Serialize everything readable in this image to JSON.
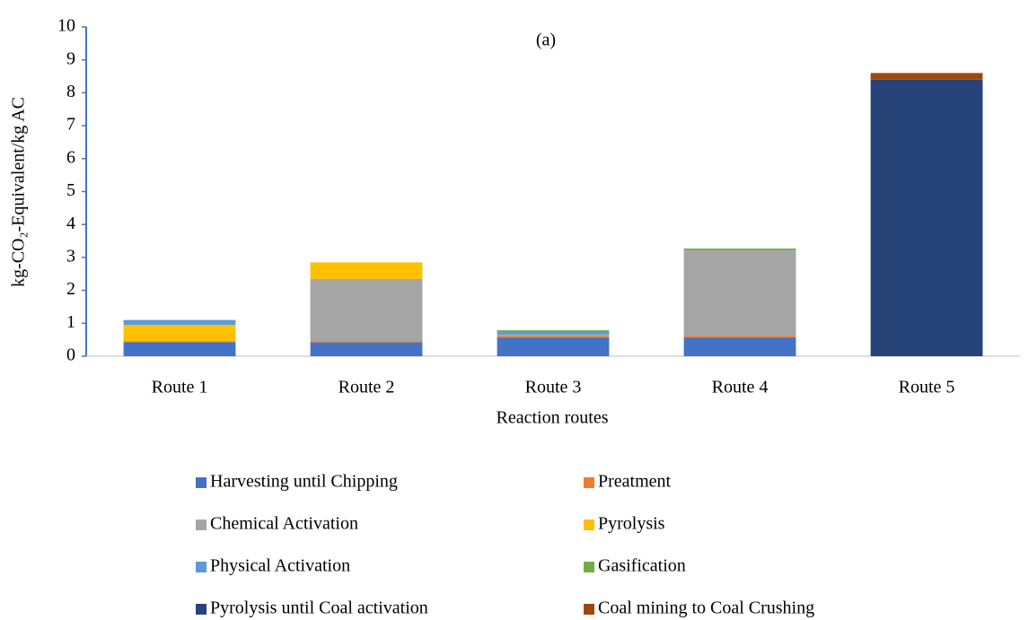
{
  "chart_data": {
    "type": "bar",
    "stacked": true,
    "title": "(a)",
    "ylabel": "kg-CO₂-Equivalent/kg AC",
    "xlabel": "Reaction routes",
    "categories": [
      "Route 1",
      "Route 2",
      "Route 3",
      "Route 4",
      "Route 5"
    ],
    "series": [
      {
        "name": "Harvesting until Chipping",
        "color": "#4472c4",
        "values": [
          0.43,
          0.42,
          0.57,
          0.57,
          0
        ]
      },
      {
        "name": "Preatment",
        "color": "#ed7d31",
        "values": [
          0.02,
          0.03,
          0.05,
          0.05,
          0
        ]
      },
      {
        "name": "Chemical Activation",
        "color": "#a5a5a5",
        "values": [
          0,
          1.9,
          0.04,
          2.6,
          0
        ]
      },
      {
        "name": "Pyrolysis",
        "color": "#ffc000",
        "values": [
          0.5,
          0.5,
          0,
          0,
          0
        ]
      },
      {
        "name": "Physical Activation",
        "color": "#5b9bd5",
        "values": [
          0.15,
          0,
          0.1,
          0,
          0
        ]
      },
      {
        "name": "Gasification",
        "color": "#70ad47",
        "values": [
          0,
          0,
          0.03,
          0.05,
          0
        ]
      },
      {
        "name": "Pyrolysis until Coal activation",
        "color": "#264478",
        "values": [
          0,
          0,
          0,
          0,
          8.4
        ]
      },
      {
        "name": "Coal mining to Coal Crushing",
        "color": "#9e480e",
        "values": [
          0,
          0,
          0,
          0,
          0.2
        ]
      }
    ],
    "ylim": [
      0,
      10
    ],
    "yticks": [
      0,
      1,
      2,
      3,
      4,
      5,
      6,
      7,
      8,
      9,
      10
    ]
  }
}
